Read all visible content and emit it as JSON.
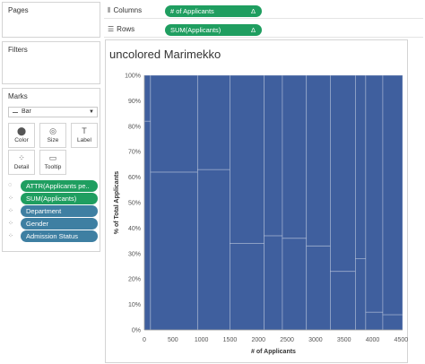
{
  "panes": {
    "pages": "Pages",
    "filters": "Filters",
    "marks": "Marks"
  },
  "shelves": {
    "columns": {
      "label": "Columns",
      "pill": "# of Applicants",
      "pill_suffix": "Δ"
    },
    "rows": {
      "label": "Rows",
      "pill": "SUM(Applicants)",
      "pill_suffix": "Δ"
    }
  },
  "marks": {
    "mark_type": "Bar",
    "cards": [
      {
        "label": "Color",
        "icon": "color-icon"
      },
      {
        "label": "Size",
        "icon": "size-icon"
      },
      {
        "label": "Label",
        "icon": "label-icon"
      },
      {
        "label": "Detail",
        "icon": "detail-icon"
      },
      {
        "label": "Tooltip",
        "icon": "tooltip-icon"
      }
    ],
    "fields": [
      {
        "label": "ATTR(Applicants pe..",
        "color": "#1f9e60",
        "icon": "tooltip-icon"
      },
      {
        "label": "SUM(Applicants)",
        "color": "#1f9e60",
        "icon": "detail-icon"
      },
      {
        "label": "Department",
        "color": "#3e7fa2",
        "icon": "detail-icon"
      },
      {
        "label": "Gender",
        "color": "#3e7fa2",
        "icon": "detail-icon"
      },
      {
        "label": "Admission Status",
        "color": "#3e7fa2",
        "icon": "detail-icon"
      }
    ]
  },
  "chart_data": {
    "type": "bar",
    "title": "uncolored Marimekko",
    "xlabel": "# of Applicants",
    "ylabel": "% of Total Applicants",
    "xlim": [
      0,
      4526
    ],
    "ylim": [
      0,
      100
    ],
    "x_ticks": [
      "0",
      "500",
      "1000",
      "1500",
      "2000",
      "2500",
      "3000",
      "3500",
      "4000",
      "4500"
    ],
    "y_ticks": [
      "0%",
      "10%",
      "20%",
      "30%",
      "40%",
      "50%",
      "60%",
      "70%",
      "80%",
      "90%",
      "100%"
    ],
    "bar_color": "#3f5f9e",
    "segments": [
      {
        "x_start": 0,
        "x_end": 108,
        "y_start": 0,
        "y_end": 82
      },
      {
        "x_start": 0,
        "x_end": 108,
        "y_start": 82,
        "y_end": 100
      },
      {
        "x_start": 108,
        "x_end": 933,
        "y_start": 0,
        "y_end": 62
      },
      {
        "x_start": 108,
        "x_end": 933,
        "y_start": 62,
        "y_end": 100
      },
      {
        "x_start": 933,
        "x_end": 1500,
        "y_start": 0,
        "y_end": 63
      },
      {
        "x_start": 933,
        "x_end": 1500,
        "y_start": 63,
        "y_end": 100
      },
      {
        "x_start": 1500,
        "x_end": 2100,
        "y_start": 0,
        "y_end": 34
      },
      {
        "x_start": 1500,
        "x_end": 2100,
        "y_start": 34,
        "y_end": 100
      },
      {
        "x_start": 2100,
        "x_end": 2420,
        "y_start": 0,
        "y_end": 37
      },
      {
        "x_start": 2100,
        "x_end": 2420,
        "y_start": 37,
        "y_end": 100
      },
      {
        "x_start": 2420,
        "x_end": 2840,
        "y_start": 0,
        "y_end": 36
      },
      {
        "x_start": 2420,
        "x_end": 2840,
        "y_start": 36,
        "y_end": 100
      },
      {
        "x_start": 2840,
        "x_end": 3260,
        "y_start": 0,
        "y_end": 33
      },
      {
        "x_start": 2840,
        "x_end": 3260,
        "y_start": 33,
        "y_end": 100
      },
      {
        "x_start": 3260,
        "x_end": 3700,
        "y_start": 0,
        "y_end": 23
      },
      {
        "x_start": 3260,
        "x_end": 3700,
        "y_start": 23,
        "y_end": 100
      },
      {
        "x_start": 3700,
        "x_end": 3880,
        "y_start": 0,
        "y_end": 28
      },
      {
        "x_start": 3700,
        "x_end": 3880,
        "y_start": 28,
        "y_end": 100
      },
      {
        "x_start": 3880,
        "x_end": 4180,
        "y_start": 0,
        "y_end": 7
      },
      {
        "x_start": 3880,
        "x_end": 4180,
        "y_start": 7,
        "y_end": 100
      },
      {
        "x_start": 4180,
        "x_end": 4526,
        "y_start": 0,
        "y_end": 6
      },
      {
        "x_start": 4180,
        "x_end": 4526,
        "y_start": 6,
        "y_end": 100
      }
    ]
  }
}
